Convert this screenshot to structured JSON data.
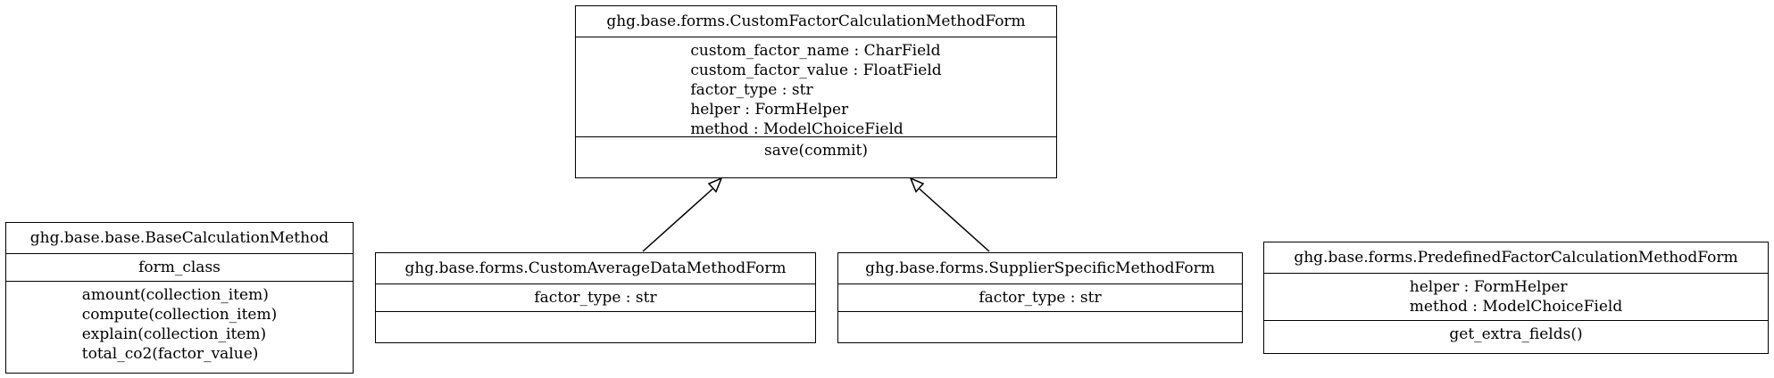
{
  "classes": {
    "custom_factor": {
      "name": "ghg.base.forms.CustomFactorCalculationMethodForm",
      "attributes": [
        "custom_factor_name : CharField",
        "custom_factor_value : FloatField",
        "factor_type : str",
        "helper : FormHelper",
        "method : ModelChoiceField"
      ],
      "methods": [
        "save(commit)"
      ]
    },
    "base_calc": {
      "name": "ghg.base.base.BaseCalculationMethod",
      "attributes": [
        "form_class"
      ],
      "methods": [
        "amount(collection_item)",
        "compute(collection_item)",
        "explain(collection_item)",
        "total_co2(factor_value)"
      ]
    },
    "custom_average": {
      "name": "ghg.base.forms.CustomAverageDataMethodForm",
      "attributes": [
        "factor_type : str"
      ],
      "methods": []
    },
    "supplier_specific": {
      "name": "ghg.base.forms.SupplierSpecificMethodForm",
      "attributes": [
        "factor_type : str"
      ],
      "methods": []
    },
    "predefined_factor": {
      "name": "ghg.base.forms.PredefinedFactorCalculationMethodForm",
      "attributes": [
        "helper : FormHelper",
        "method : ModelChoiceField"
      ],
      "methods": [
        "get_extra_fields()"
      ]
    }
  }
}
